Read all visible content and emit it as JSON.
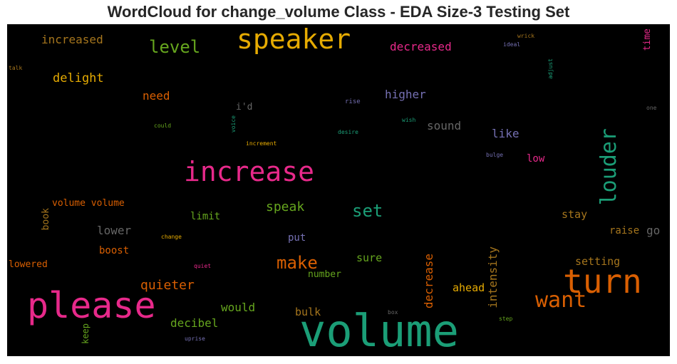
{
  "title": "WordCloud for change_volume Class - EDA Size-3 Testing Set",
  "palette": {
    "background": "#000000",
    "teal": "#1b9e77",
    "orange": "#d95f02",
    "purple": "#7570b3",
    "magenta": "#e7298a",
    "green": "#66a61e",
    "gold": "#e6ab02",
    "brown": "#a6761d",
    "gray": "#666666"
  },
  "words": [
    "volume",
    "please",
    "turn",
    "speaker",
    "increase",
    "louder",
    "want",
    "level",
    "make",
    "set",
    "increased",
    "decreased",
    "quieter",
    "decrease",
    "intensity",
    "delight",
    "speak",
    "would",
    "higher",
    "sound",
    "decibel",
    "lower",
    "need",
    "like",
    "sure",
    "setting",
    "stay",
    "limit",
    "raise",
    "go",
    "bulk",
    "boost",
    "volume volume",
    "ahead",
    "number",
    "lowered",
    "put",
    "low",
    "i'd",
    "book",
    "time",
    "keep",
    "rise",
    "wish",
    "desire",
    "increment",
    "could",
    "voice",
    "bulge",
    "adjust",
    "ideal",
    "wrick",
    "talk",
    "one",
    "change",
    "quiet",
    "step",
    "box",
    "uprise"
  ]
}
